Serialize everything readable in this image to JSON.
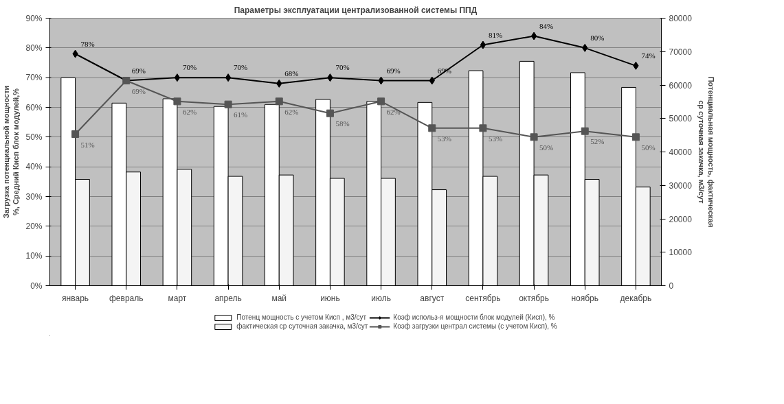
{
  "chart_data": {
    "type": "bar",
    "title": "Параметры эксплуатации централизованной системы ППД",
    "ylabel": "Загрузка потенциальной мощности %, Средний Кисп блок модулей,%",
    "y2label": "Потенциальная мощность, фактическая ср суточная закачка, м3/сут",
    "categories": [
      "январь",
      "февраль",
      "март",
      "апрель",
      "май",
      "июнь",
      "июль",
      "август",
      "сентябрь",
      "октябрь",
      "ноябрь",
      "декабрь"
    ],
    "series": [
      {
        "name": "Потенц мощность с учетом Кисп , м3/сут",
        "axis": "y2",
        "color": "#ffffff",
        "values": [
          62200,
          54600,
          55900,
          53600,
          54200,
          55700,
          55100,
          54800,
          64300,
          67100,
          63700,
          59300
        ]
      },
      {
        "name": "фактическая ср суточная закачка, м3/сут",
        "axis": "y2",
        "color": "#f4f4f4",
        "values": [
          31800,
          34000,
          34800,
          32700,
          33100,
          32100,
          32100,
          28700,
          32700,
          33100,
          31800,
          29500
        ]
      },
      {
        "name": "Коэф использ-я мощности блок модулей (Кисп), %",
        "type": "line",
        "color": "#000000",
        "marker": "diamond",
        "values": [
          78,
          69,
          70,
          70,
          68,
          70,
          69,
          69,
          81,
          84,
          80,
          74
        ],
        "value_labels": [
          "78%",
          "69%",
          "70%",
          "70%",
          "68%",
          "70%",
          "69%",
          "69%",
          "81%",
          "84%",
          "80%",
          "74%"
        ]
      },
      {
        "name": "Коэф загрузки централ системы (с учетом Кисп), %",
        "type": "line",
        "color": "#555555",
        "marker": "square",
        "values": [
          51,
          69,
          62,
          61,
          62,
          58,
          62,
          53,
          53,
          50,
          52,
          50
        ],
        "value_labels": [
          "51%",
          "69%",
          "62%",
          "61%",
          "62%",
          "58%",
          "62%",
          "53%",
          "53%",
          "50%",
          "52%",
          "50%"
        ]
      }
    ],
    "ylim": [
      0,
      90
    ],
    "yticks": [
      {
        "value": 0,
        "label": "0%"
      },
      {
        "value": 10,
        "label": "10%"
      },
      {
        "value": 20,
        "label": "20%"
      },
      {
        "value": 30,
        "label": "30%"
      },
      {
        "value": 40,
        "label": "40%"
      },
      {
        "value": 50,
        "label": "50%"
      },
      {
        "value": 60,
        "label": "60%"
      },
      {
        "value": 70,
        "label": "70%"
      },
      {
        "value": 80,
        "label": "80%"
      },
      {
        "value": 90,
        "label": "90%"
      }
    ],
    "y2lim": [
      0,
      80000
    ],
    "y2ticks": [
      0,
      10000,
      20000,
      30000,
      40000,
      50000,
      60000,
      70000,
      80000
    ],
    "grid": "y",
    "legend": "bottom"
  }
}
